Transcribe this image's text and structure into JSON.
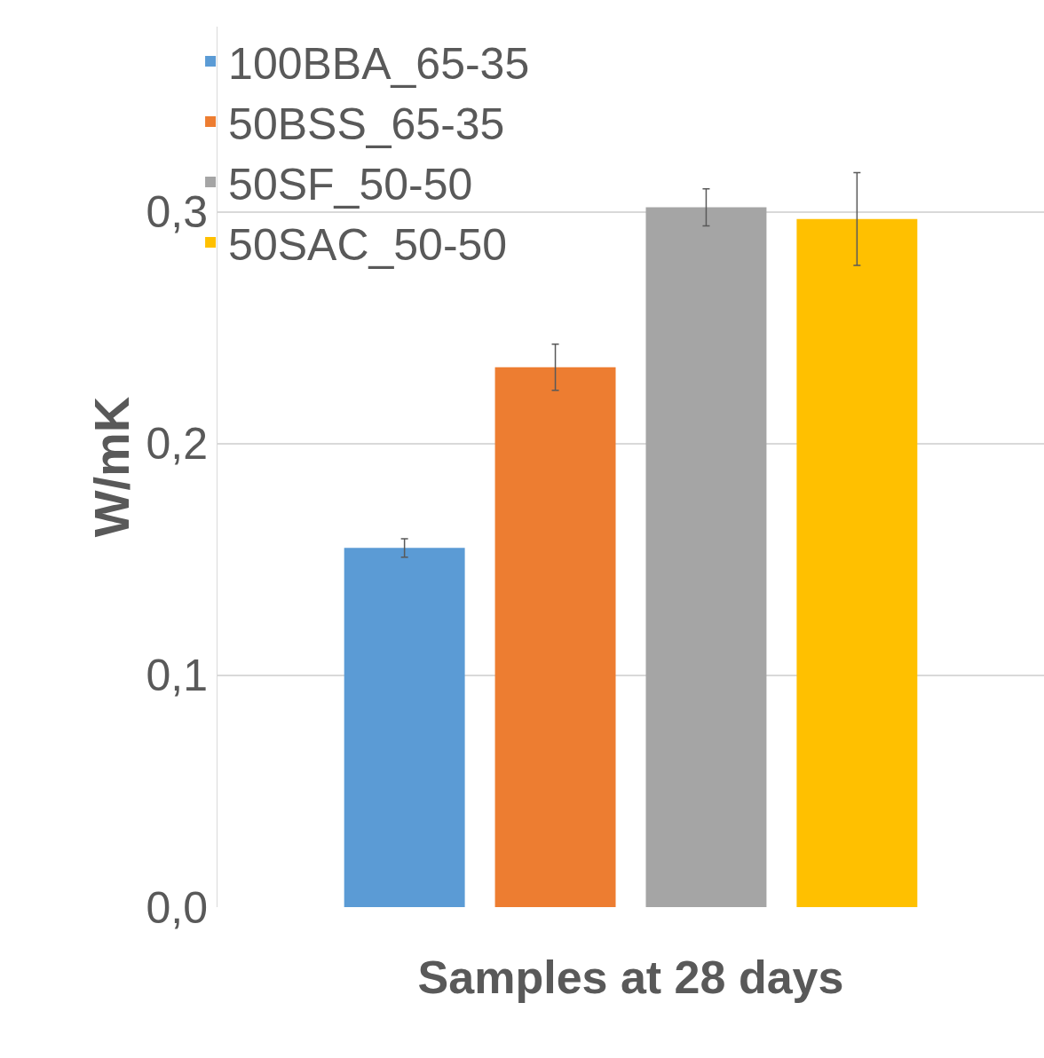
{
  "chart_data": {
    "type": "bar",
    "xlabel": "Samples at 28 days",
    "ylabel": "W/mK",
    "categories": [
      null
    ],
    "series": [
      {
        "name": "100BBA_65-35",
        "color": "#5b9bd5",
        "values": [
          0.155
        ],
        "errors": [
          0.004
        ]
      },
      {
        "name": "50BSS_65-35",
        "color": "#ed7d31",
        "values": [
          0.233
        ],
        "errors": [
          0.01
        ]
      },
      {
        "name": "50SF_50-50",
        "color": "#a5a5a5",
        "values": [
          0.302
        ],
        "errors": [
          0.008
        ]
      },
      {
        "name": "50SAC_50-50",
        "color": "#ffc000",
        "values": [
          0.297
        ],
        "errors": [
          0.02
        ]
      }
    ],
    "ylim": [
      0,
      0.38
    ],
    "yticks": [
      {
        "value": 0,
        "label": "0,0"
      },
      {
        "value": 0.1,
        "label": "0,1"
      },
      {
        "value": 0.2,
        "label": "0,2"
      },
      {
        "value": 0.3,
        "label": "0,3"
      }
    ],
    "grid": "y",
    "legend": "top left"
  }
}
